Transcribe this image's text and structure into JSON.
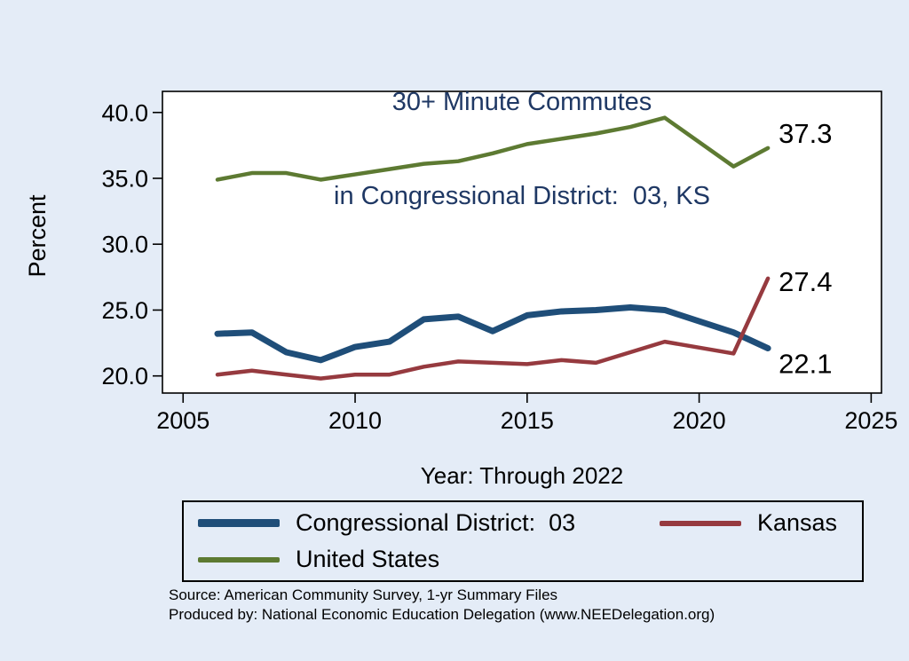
{
  "chart_data": {
    "type": "line",
    "title_lines": [
      "30+ Minute Commutes",
      "in Congressional District:  03, KS"
    ],
    "xlabel": "Year: Through 2022",
    "ylabel": "Percent",
    "x": [
      2006,
      2007,
      2008,
      2009,
      2010,
      2011,
      2012,
      2013,
      2014,
      2015,
      2016,
      2017,
      2018,
      2019,
      2020,
      2021,
      2022
    ],
    "series": [
      {
        "id": "cd03",
        "name": "Congressional District:  03",
        "color": "#1f4e79",
        "stroke_width": 7,
        "end_label": "22.1",
        "end_label_offset": [
          12,
          28
        ],
        "values": [
          23.2,
          23.3,
          21.8,
          21.2,
          22.2,
          22.6,
          24.3,
          24.5,
          23.4,
          24.6,
          24.9,
          25.0,
          25.2,
          25.0,
          null,
          23.3,
          22.1
        ]
      },
      {
        "id": "kansas",
        "name": "Kansas",
        "color": "#963a3f",
        "stroke_width": 4.5,
        "end_label": "27.4",
        "end_label_offset": [
          12,
          14
        ],
        "values": [
          20.1,
          20.4,
          20.1,
          19.8,
          20.1,
          20.1,
          20.7,
          21.1,
          21.0,
          20.9,
          21.2,
          21.0,
          21.8,
          22.6,
          null,
          21.7,
          27.4
        ]
      },
      {
        "id": "us",
        "name": "United States",
        "color": "#5d7a32",
        "stroke_width": 4.5,
        "end_label": "37.3",
        "end_label_offset": [
          12,
          -6
        ],
        "values": [
          34.9,
          35.4,
          35.4,
          34.9,
          35.3,
          35.7,
          36.1,
          36.3,
          36.9,
          37.6,
          38.0,
          38.4,
          38.9,
          39.6,
          null,
          35.9,
          37.3
        ]
      }
    ],
    "x_ticks": {
      "values": [
        2005,
        2010,
        2015,
        2020,
        2025
      ],
      "labels": [
        "2005",
        "2010",
        "2015",
        "2020",
        "2025"
      ]
    },
    "y_ticks": {
      "values": [
        20,
        25,
        30,
        35,
        40
      ],
      "labels": [
        "20.0",
        "25.0",
        "30.0",
        "35.0",
        "40.0"
      ]
    },
    "xlim": [
      2004.4,
      2025.3
    ],
    "ylim": [
      18.7,
      41.6
    ],
    "grid": false,
    "legend_position": "bottom"
  },
  "colors": {
    "background": "#e4ecf7",
    "plot_background": "#ffffff",
    "title": "#1f3864",
    "axis": "#000000"
  },
  "footer": {
    "source_line": "Source: American Community Survey, 1-yr Summary Files",
    "produced_line": "Produced by: National Economic Education Delegation (www.NEEDelegation.org)"
  }
}
